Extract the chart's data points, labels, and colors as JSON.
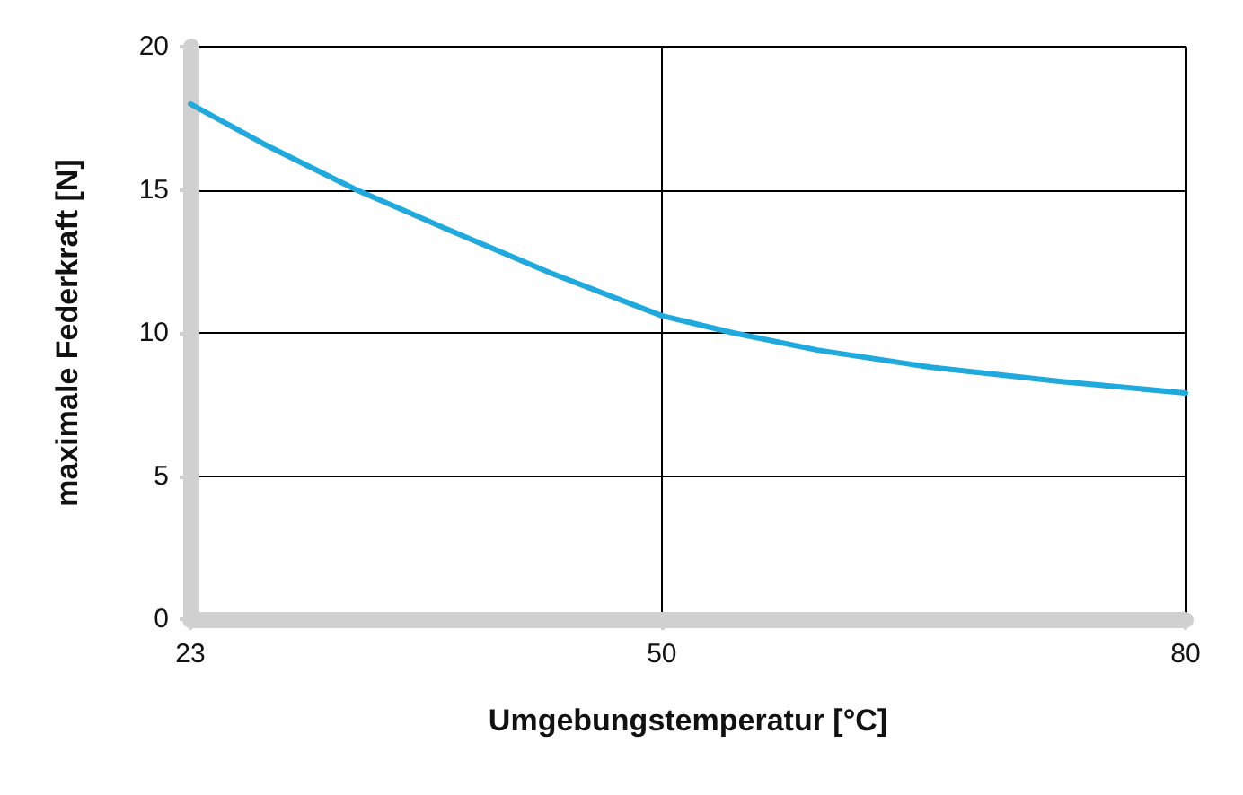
{
  "chart_data": {
    "type": "line",
    "xlabel": "Umgebungstemperatur [°C]",
    "ylabel": "maximale Federkraft [N]",
    "x": [
      23,
      27.2,
      32.5,
      37.8,
      43.6,
      50,
      54.1,
      58.9,
      65.4,
      72.9,
      80
    ],
    "series": [
      {
        "color": "#1fa9dc",
        "values": [
          18.0,
          16.6,
          15.0,
          13.6,
          12.1,
          10.6,
          10.0,
          9.4,
          8.8,
          8.3,
          7.9
        ]
      }
    ],
    "xlim": [
      23,
      80
    ],
    "xticks": [
      23,
      50,
      80
    ],
    "ylim": [
      0,
      20
    ],
    "yticks": [
      0,
      5,
      10,
      15,
      20
    ],
    "grid": true,
    "marker": "none",
    "line_style": "solid"
  }
}
